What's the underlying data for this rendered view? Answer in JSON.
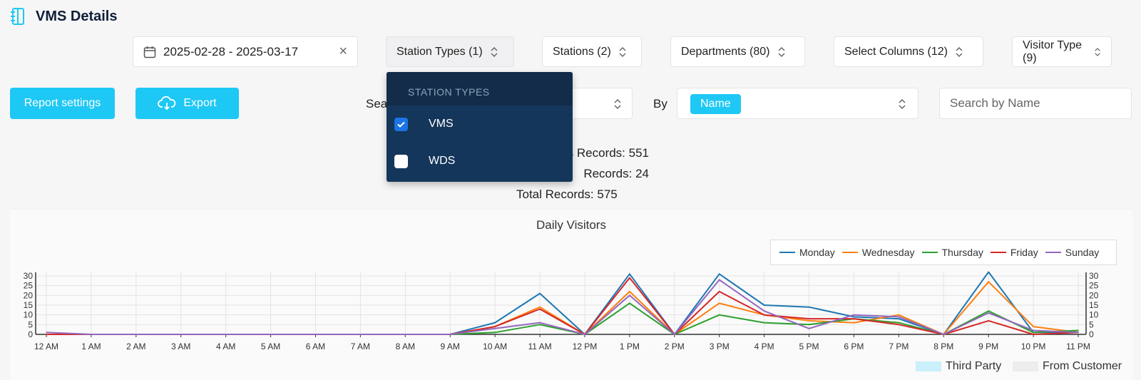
{
  "header": {
    "title": "VMS Details",
    "icon": "notebook-icon"
  },
  "filters": {
    "date_range": "2025-02-28 - 2025-03-17",
    "station_types": "Station Types (1)",
    "stations": "Stations (2)",
    "departments": "Departments (80)",
    "select_columns": "Select Columns (12)",
    "visitor_type": "Visitor Type (9)"
  },
  "actions": {
    "report_settings": "Report settings",
    "export": "Export"
  },
  "search": {
    "label": "Sea",
    "by_label": "By",
    "by_tag": "Name",
    "placeholder": "Search by Name"
  },
  "stats": {
    "line1": "s Records: 551",
    "line2": "Records: 24",
    "total": "Total Records: 575"
  },
  "dropdown": {
    "header": "STATION TYPES",
    "items": [
      {
        "label": "VMS",
        "checked": true
      },
      {
        "label": "WDS",
        "checked": false
      }
    ]
  },
  "bottom_legend": {
    "third_party": "Third Party",
    "from_customer": "From Customer"
  },
  "colors": {
    "accent": "#1ec8f4",
    "dropdown_bg": "#14365a",
    "checkbox": "#1b73e8"
  },
  "chart_data": {
    "type": "line",
    "title": "Daily Visitors",
    "categories": [
      "12 AM",
      "1 AM",
      "2 AM",
      "3 AM",
      "4 AM",
      "5 AM",
      "6 AM",
      "7 AM",
      "8 AM",
      "9 AM",
      "10 AM",
      "11 AM",
      "12 PM",
      "1 PM",
      "2 PM",
      "3 PM",
      "4 PM",
      "5 PM",
      "6 PM",
      "7 PM",
      "8 PM",
      "9 PM",
      "10 PM",
      "11 PM"
    ],
    "ylim": [
      0,
      30
    ],
    "yticks": [
      "0",
      "5",
      "10",
      "15",
      "20",
      "25",
      "30"
    ],
    "legend_position": "top-right",
    "series": [
      {
        "name": "Monday",
        "color": "#1f77b4",
        "values": [
          0,
          0,
          0,
          0,
          0,
          0,
          0,
          0,
          0,
          0,
          6,
          21,
          0,
          31,
          0,
          31,
          15,
          14,
          9,
          8,
          0,
          32,
          1,
          1
        ]
      },
      {
        "name": "Wednesday",
        "color": "#ff7f0e",
        "values": [
          0,
          0,
          0,
          0,
          0,
          0,
          0,
          0,
          0,
          0,
          4,
          14,
          0,
          22,
          0,
          16,
          10,
          7,
          6,
          10,
          0,
          27,
          4,
          1
        ]
      },
      {
        "name": "Thursday",
        "color": "#2ca02c",
        "values": [
          0,
          0,
          0,
          0,
          0,
          0,
          0,
          0,
          0,
          0,
          1,
          5,
          0,
          16,
          0,
          10,
          6,
          5,
          8,
          6,
          0,
          12,
          1,
          2
        ]
      },
      {
        "name": "Friday",
        "color": "#d62728",
        "values": [
          0,
          0,
          0,
          0,
          0,
          0,
          0,
          0,
          0,
          0,
          4,
          13,
          0,
          29,
          0,
          22,
          10,
          8,
          8,
          5,
          0,
          7,
          0,
          1
        ]
      },
      {
        "name": "Sunday",
        "color": "#9467bd",
        "values": [
          1,
          0,
          0,
          0,
          0,
          0,
          0,
          0,
          0,
          0,
          3,
          6,
          0,
          20,
          0,
          28,
          12,
          3,
          10,
          9,
          0,
          11,
          2,
          1
        ]
      }
    ]
  }
}
